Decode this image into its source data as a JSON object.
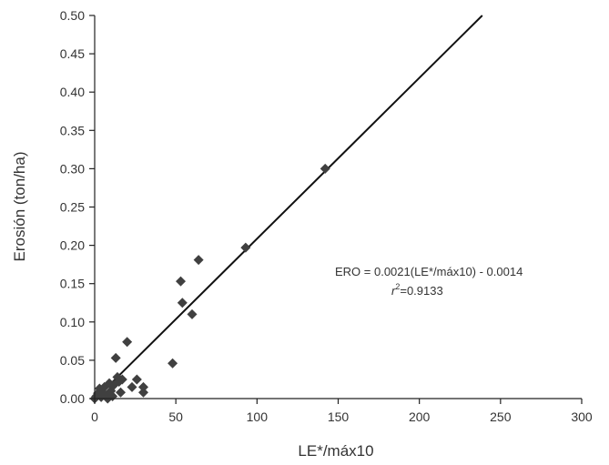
{
  "chart_data": {
    "type": "scatter",
    "xlabel": "LE*/máx10",
    "ylabel": "Erosión (ton/ha)",
    "xlim": [
      0,
      300
    ],
    "ylim": [
      0,
      0.5
    ],
    "x_ticks": [
      "0",
      "50",
      "100",
      "150",
      "200",
      "250",
      "300"
    ],
    "y_ticks": [
      "0.00",
      "0.05",
      "0.10",
      "0.15",
      "0.20",
      "0.25",
      "0.30",
      "0.35",
      "0.40",
      "0.45",
      "0.50"
    ],
    "grid": false,
    "annotation": {
      "equation": "ERO = 0.0021(LE*/máx10) - 0.0014",
      "r2_symbol": "r",
      "r2_exp": "2",
      "r2_value": "=0.9133"
    },
    "fit_line": {
      "slope": 0.0021,
      "intercept": -0.0014
    },
    "points": [
      {
        "x": 0,
        "y": 0.0
      },
      {
        "x": 1,
        "y": 0.003
      },
      {
        "x": 2,
        "y": 0.007
      },
      {
        "x": 3,
        "y": 0.013
      },
      {
        "x": 4,
        "y": 0.002
      },
      {
        "x": 5,
        "y": 0.008
      },
      {
        "x": 6,
        "y": 0.015
      },
      {
        "x": 7,
        "y": 0.004
      },
      {
        "x": 8,
        "y": 0.0
      },
      {
        "x": 9,
        "y": 0.02
      },
      {
        "x": 10,
        "y": 0.01
      },
      {
        "x": 11,
        "y": 0.003
      },
      {
        "x": 12,
        "y": 0.018
      },
      {
        "x": 13,
        "y": 0.053
      },
      {
        "x": 14,
        "y": 0.028
      },
      {
        "x": 15,
        "y": 0.022
      },
      {
        "x": 16,
        "y": 0.008
      },
      {
        "x": 17,
        "y": 0.025
      },
      {
        "x": 20,
        "y": 0.074
      },
      {
        "x": 23,
        "y": 0.015
      },
      {
        "x": 26,
        "y": 0.025
      },
      {
        "x": 30,
        "y": 0.015
      },
      {
        "x": 30,
        "y": 0.008
      },
      {
        "x": 48,
        "y": 0.046
      },
      {
        "x": 53,
        "y": 0.153
      },
      {
        "x": 54,
        "y": 0.125
      },
      {
        "x": 60,
        "y": 0.11
      },
      {
        "x": 64,
        "y": 0.181
      },
      {
        "x": 93,
        "y": 0.197
      },
      {
        "x": 142,
        "y": 0.3
      }
    ]
  }
}
